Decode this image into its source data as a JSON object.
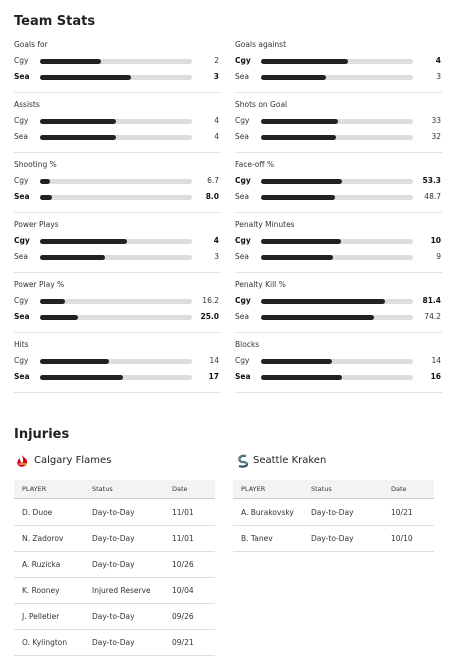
{
  "team_stats": {
    "title": "Team Stats",
    "stats": [
      {
        "label": "Goals for",
        "rows": [
          {
            "team": "Cgy",
            "value": 2
          },
          {
            "team": "Sea",
            "value": 3,
            "bold": true
          }
        ]
      },
      {
        "label": "Goals against",
        "rows": [
          {
            "team": "Cgy",
            "value": 4,
            "bold": true
          },
          {
            "team": "Sea",
            "value": 3
          }
        ]
      },
      {
        "label": "Assists",
        "rows": [
          {
            "team": "Cgy",
            "value": 4
          },
          {
            "team": "Sea",
            "value": 4
          }
        ]
      },
      {
        "label": "Shots on Goal",
        "rows": [
          {
            "team": "Cgy",
            "value": 33
          },
          {
            "team": "Sea",
            "value": 32
          }
        ]
      },
      {
        "label": "Shooting %",
        "percent": true,
        "rows": [
          {
            "team": "Cgy",
            "value": 6.7
          },
          {
            "team": "Sea",
            "value": 8,
            "value_label": "8.0",
            "bold": true
          }
        ]
      },
      {
        "label": "Face-off %",
        "percent": true,
        "rows": [
          {
            "team": "Cgy",
            "value": 53.3,
            "bold": true
          },
          {
            "team": "Sea",
            "value": 48.7
          }
        ]
      },
      {
        "label": "Power Plays",
        "rows": [
          {
            "team": "Cgy",
            "value": 4,
            "bold": true
          },
          {
            "team": "Sea",
            "value": 3
          }
        ]
      },
      {
        "label": "Penalty Minutes",
        "rows": [
          {
            "team": "Cgy",
            "value": 10,
            "bold": true
          },
          {
            "team": "Sea",
            "value": 9
          }
        ]
      },
      {
        "label": "Power Play %",
        "percent": true,
        "rows": [
          {
            "team": "Cgy",
            "value": 16.2
          },
          {
            "team": "Sea",
            "value": 25,
            "value_label": "25.0",
            "bold": true
          }
        ]
      },
      {
        "label": "Penalty Kill %",
        "percent": true,
        "rows": [
          {
            "team": "Cgy",
            "value": 81.4,
            "bold": true
          },
          {
            "team": "Sea",
            "value": 74.2
          }
        ]
      },
      {
        "label": "Hits",
        "rows": [
          {
            "team": "Cgy",
            "value": 14
          },
          {
            "team": "Sea",
            "value": 17,
            "bold": true
          }
        ]
      },
      {
        "label": "Blocks",
        "rows": [
          {
            "team": "Cgy",
            "value": 14
          },
          {
            "team": "Sea",
            "value": 16,
            "bold": true
          }
        ]
      }
    ]
  },
  "injuries": {
    "title": "Injuries",
    "teams": [
      {
        "name": "Calgary Flames",
        "columns": [
          "PLAYER",
          "Status",
          "Date"
        ],
        "rows": [
          [
            "D. Duoe",
            "Day-to-Day",
            "11/01"
          ],
          [
            "N. Zadorov",
            "Day-to-Day",
            "11/01"
          ],
          [
            "A. Ruzicka",
            "Day-to-Day",
            "10/26"
          ],
          [
            "K. Rooney",
            "Injured Reserve",
            "10/04"
          ],
          [
            "J. Pelletier",
            "Day-to-Day",
            "09/26"
          ],
          [
            "O. Kylington",
            "Day-to-Day",
            "09/21"
          ]
        ]
      },
      {
        "name": "Seattle Kraken",
        "columns": [
          "PLAYER",
          "Status",
          "Date"
        ],
        "rows": [
          [
            "A. Burakovsky",
            "Day-to-Day",
            "10/21"
          ],
          [
            "B. Tanev",
            "Day-to-Day",
            "10/10"
          ]
        ]
      }
    ]
  }
}
